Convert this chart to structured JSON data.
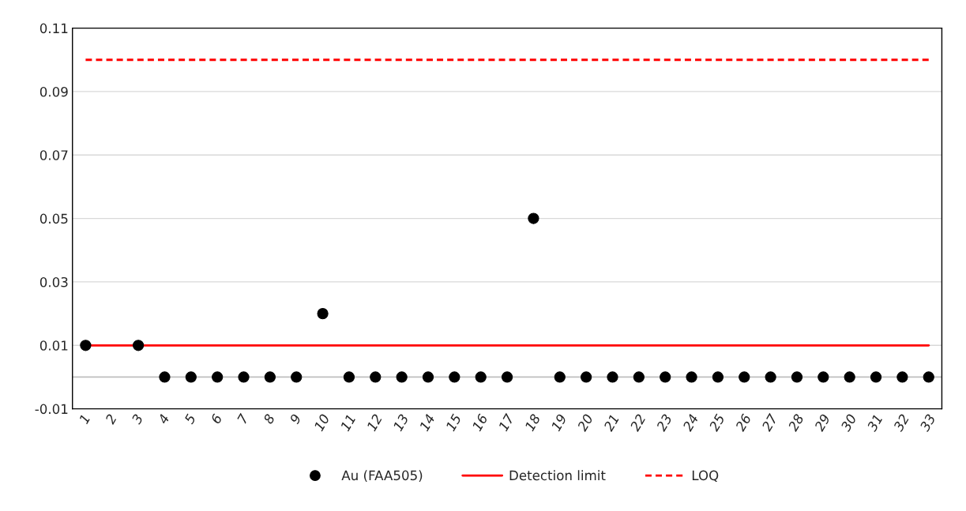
{
  "chart_data": {
    "type": "scatter",
    "categories": [
      "1",
      "2",
      "3",
      "4",
      "5",
      "6",
      "7",
      "8",
      "9",
      "10",
      "11",
      "12",
      "13",
      "14",
      "15",
      "16",
      "17",
      "18",
      "19",
      "20",
      "21",
      "22",
      "23",
      "24",
      "25",
      "26",
      "27",
      "28",
      "29",
      "30",
      "31",
      "32",
      "33"
    ],
    "series": [
      {
        "name": "Au (FAA505)",
        "color": "#000000",
        "marker": "circle",
        "values": [
          0.01,
          null,
          0.01,
          0,
          0,
          0,
          0,
          0,
          0,
          0.02,
          0,
          0,
          0,
          0,
          0,
          0,
          0,
          0.05,
          0,
          0,
          0,
          0,
          0,
          0,
          0,
          0,
          0,
          0,
          0,
          0,
          0,
          0,
          0
        ]
      },
      {
        "name": "Detection limit",
        "type": "line",
        "color": "#ff0000",
        "line_style": "solid",
        "marker": "none",
        "values": [
          0.01,
          0.01,
          0.01,
          0.01,
          0.01,
          0.01,
          0.01,
          0.01,
          0.01,
          0.01,
          0.01,
          0.01,
          0.01,
          0.01,
          0.01,
          0.01,
          0.01,
          0.01,
          0.01,
          0.01,
          0.01,
          0.01,
          0.01,
          0.01,
          0.01,
          0.01,
          0.01,
          0.01,
          0.01,
          0.01,
          0.01,
          0.01,
          0.01
        ]
      },
      {
        "name": "LOQ",
        "type": "line",
        "color": "#ff0000",
        "line_style": "dashed",
        "marker": "none",
        "values": [
          0.1,
          0.1,
          0.1,
          0.1,
          0.1,
          0.1,
          0.1,
          0.1,
          0.1,
          0.1,
          0.1,
          0.1,
          0.1,
          0.1,
          0.1,
          0.1,
          0.1,
          0.1,
          0.1,
          0.1,
          0.1,
          0.1,
          0.1,
          0.1,
          0.1,
          0.1,
          0.1,
          0.1,
          0.1,
          0.1,
          0.1,
          0.1,
          0.1
        ]
      }
    ],
    "ylim": [
      -0.01,
      0.11
    ],
    "yticks": [
      -0.01,
      0.01,
      0.03,
      0.05,
      0.07,
      0.09,
      0.11
    ],
    "ref_lines": [
      {
        "axis": "y",
        "value": 0,
        "color": "#bfbfbf",
        "line_style": "solid"
      }
    ],
    "grid": "y",
    "legend": "bottom"
  }
}
